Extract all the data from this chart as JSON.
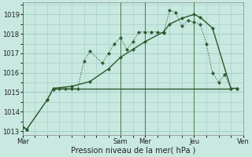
{
  "bg_color": "#c8e8e0",
  "grid_color": "#a0ccc4",
  "line_color": "#2d5a2d",
  "marker_color": "#2d5a2d",
  "x_tick_labels": [
    "Mar",
    "Sam",
    "Mer",
    "Jeu",
    "Ven"
  ],
  "ylim": [
    1012.8,
    1019.6
  ],
  "yticks": [
    1013,
    1014,
    1015,
    1016,
    1017,
    1018,
    1019
  ],
  "xlabel": "Pression niveau de la mer( hPa )",
  "series1_x": [
    0,
    4,
    24,
    30,
    36,
    42,
    48,
    54,
    60,
    66,
    78,
    84,
    90,
    96,
    102,
    108,
    114,
    120,
    126,
    132,
    138,
    144,
    150,
    156,
    162,
    168,
    174,
    180,
    186,
    192,
    198,
    204,
    210
  ],
  "series1_y": [
    1013.2,
    1013.1,
    1014.6,
    1015.15,
    1015.2,
    1015.2,
    1015.2,
    1015.2,
    1016.6,
    1017.1,
    1016.5,
    1017.0,
    1017.5,
    1017.8,
    1017.2,
    1017.6,
    1018.1,
    1018.1,
    1018.1,
    1018.1,
    1018.05,
    1019.2,
    1019.1,
    1018.4,
    1018.7,
    1018.6,
    1018.5,
    1017.5,
    1016.0,
    1015.5,
    1015.9,
    1015.2,
    1015.2
  ],
  "series2_x": [
    0,
    4,
    24,
    30,
    48,
    66,
    84,
    96,
    108,
    120,
    138,
    144,
    156,
    168,
    174,
    186,
    204,
    210
  ],
  "series2_y": [
    1013.2,
    1013.1,
    1014.6,
    1015.2,
    1015.3,
    1015.55,
    1016.2,
    1016.8,
    1017.2,
    1017.6,
    1018.1,
    1018.5,
    1018.8,
    1019.0,
    1018.85,
    1018.3,
    1015.2,
    1015.2
  ],
  "hline_y": 1015.2,
  "hline_x_start": 30,
  "hline_x_end": 204,
  "xlim": [
    0,
    216
  ],
  "mar_x": 0,
  "sam_x": 96,
  "mer_x": 120,
  "jeu_x": 168,
  "ven_x": 216
}
